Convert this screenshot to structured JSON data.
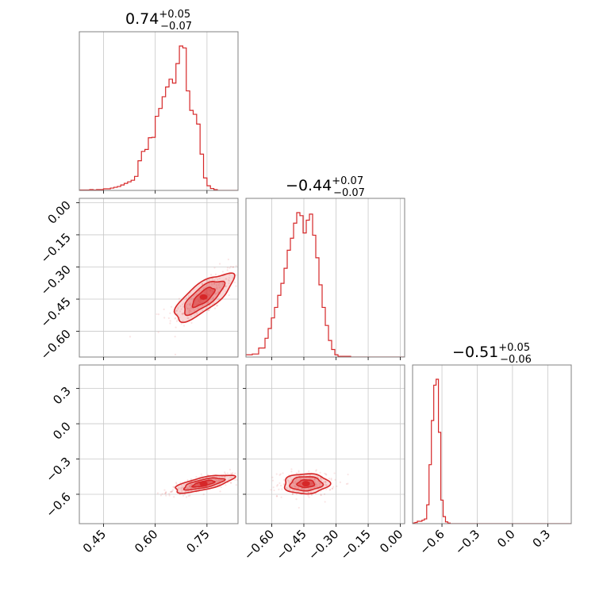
{
  "chart_data": {
    "type": "corner",
    "color": "#d62728",
    "grid": true,
    "parameters": [
      {
        "id": "p0",
        "title": {
          "median": "0.74",
          "plus": "+0.05",
          "minus": "−0.07"
        },
        "range": [
          0.38,
          0.84
        ],
        "ticks": [
          0.45,
          0.6,
          0.75
        ],
        "ticklabels": [
          "0.45",
          "0.60",
          "0.75"
        ],
        "hist_edges_start": 0.38,
        "hist_bin_width": 0.01,
        "hist_counts": [
          1,
          1,
          1,
          2,
          1,
          2,
          2,
          4,
          4,
          6,
          8,
          10,
          14,
          18,
          22,
          26,
          36,
          76,
          100,
          105,
          135,
          136,
          190,
          210,
          240,
          265,
          285,
          275,
          325,
          370,
          365,
          255,
          205,
          195,
          170,
          93,
          32,
          12,
          5,
          2,
          0,
          0,
          0,
          0,
          0,
          0
        ]
      },
      {
        "id": "p1",
        "title": {
          "median": "−0.44",
          "plus": "+0.07",
          "minus": "−0.07"
        },
        "range": [
          -0.72,
          0.02
        ],
        "ticks": [
          -0.6,
          -0.45,
          -0.3,
          -0.15,
          0.0
        ],
        "ticklabels": [
          "−0.60",
          "−0.45",
          "−0.30",
          "−0.15",
          "0.00"
        ],
        "hist_edges_start": -0.72,
        "hist_bin_width": 0.0148,
        "hist_counts": [
          3,
          3,
          4,
          4,
          12,
          12,
          25,
          38,
          52,
          66,
          82,
          98,
          118,
          142,
          158,
          178,
          192,
          188,
          165,
          182,
          190,
          162,
          132,
          96,
          66,
          42,
          22,
          10,
          3,
          1,
          1,
          1,
          1,
          0,
          0,
          0,
          0,
          0,
          0,
          0,
          0,
          0,
          0,
          0,
          0,
          0,
          0,
          0,
          0,
          0
        ]
      },
      {
        "id": "p2",
        "title": {
          "median": "−0.51",
          "plus": "+0.05",
          "minus": "−0.06"
        },
        "range": [
          -0.85,
          0.5
        ],
        "ticks": [
          -0.6,
          -0.3,
          0.0,
          0.3
        ],
        "ticklabels": [
          "−0.6",
          "−0.3",
          "0.0",
          "0.3"
        ],
        "hist_edges_start": -0.85,
        "hist_bin_width": 0.02,
        "hist_counts": [
          1,
          2,
          4,
          4,
          6,
          8,
          32,
          100,
          175,
          235,
          245,
          155,
          40,
          12,
          3,
          1,
          0,
          0,
          0,
          0,
          0,
          0,
          0,
          0,
          0,
          0,
          0,
          0,
          0,
          0,
          0,
          0,
          0,
          0,
          0,
          0,
          0,
          0,
          0,
          0,
          0,
          0,
          0,
          0,
          0,
          0,
          0,
          0,
          0,
          0,
          0,
          0,
          0,
          0,
          0,
          0,
          0,
          0,
          0,
          0,
          0,
          0,
          0,
          0,
          0,
          0,
          0,
          0
        ]
      }
    ],
    "pairs": [
      {
        "x": 0,
        "y": 1,
        "correlation": 0.75,
        "center": [
          0.74,
          -0.44
        ],
        "contours": [
          {
            "level": "outer",
            "sx": 0.085,
            "sy": 0.11
          },
          {
            "level": "mid",
            "sx": 0.058,
            "sy": 0.078
          },
          {
            "level": "inner",
            "sx": 0.032,
            "sy": 0.045
          }
        ]
      },
      {
        "x": 0,
        "y": 2,
        "correlation": 0.7,
        "center": [
          0.74,
          -0.51
        ],
        "contours": [
          {
            "level": "outer",
            "sx": 0.085,
            "sy": 0.075
          },
          {
            "level": "mid",
            "sx": 0.058,
            "sy": 0.05
          },
          {
            "level": "inner",
            "sx": 0.032,
            "sy": 0.028
          }
        ]
      },
      {
        "x": 1,
        "y": 2,
        "correlation": 0.05,
        "center": [
          -0.44,
          -0.51
        ],
        "contours": [
          {
            "level": "outer",
            "sx": 0.105,
            "sy": 0.085
          },
          {
            "level": "mid",
            "sx": 0.075,
            "sy": 0.06
          },
          {
            "level": "inner",
            "sx": 0.04,
            "sy": 0.032
          }
        ]
      }
    ]
  }
}
